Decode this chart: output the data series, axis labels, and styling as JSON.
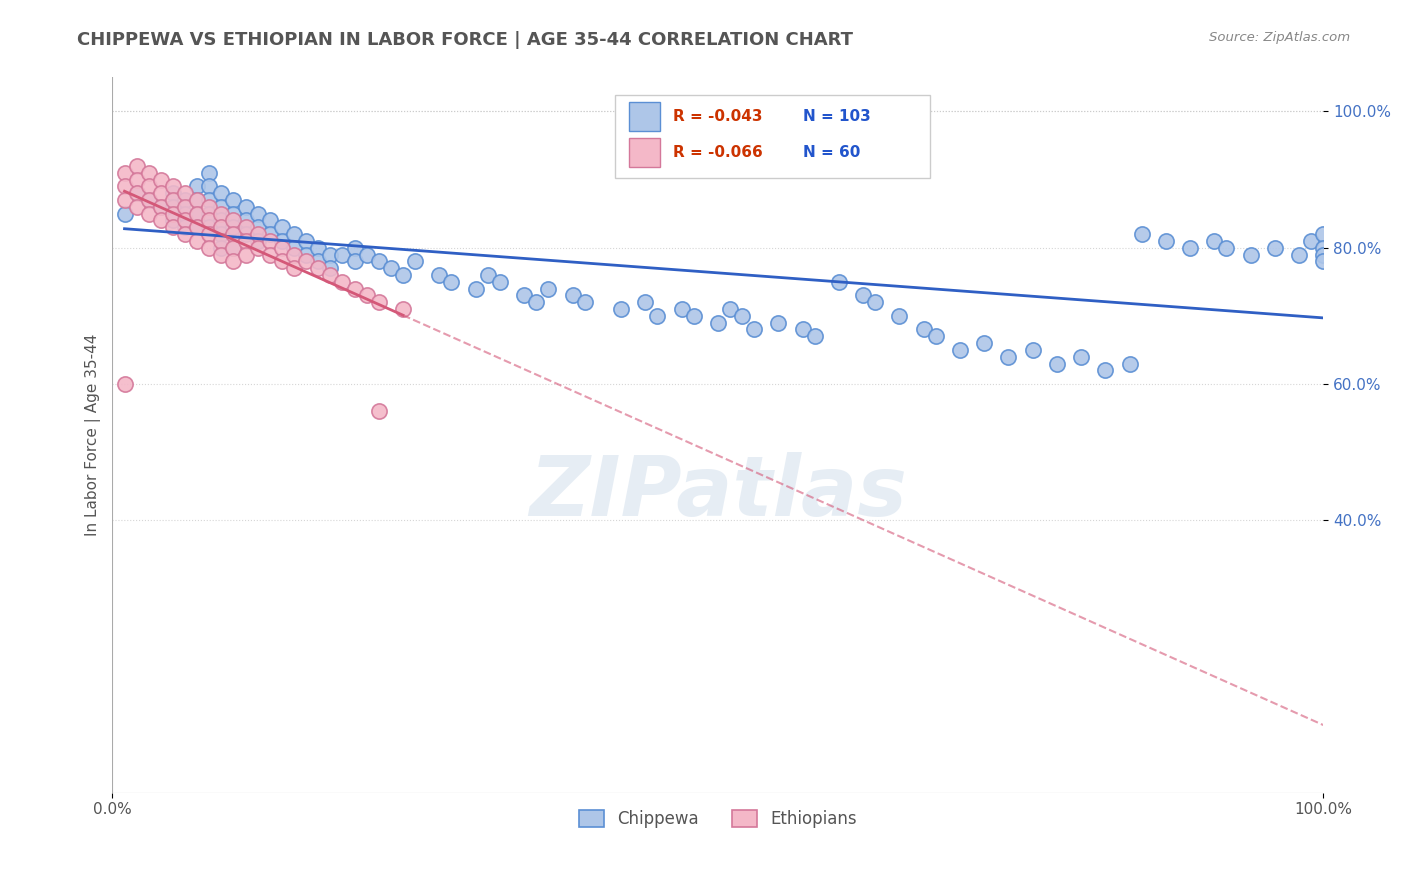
{
  "title": "CHIPPEWA VS ETHIOPIAN IN LABOR FORCE | AGE 35-44 CORRELATION CHART",
  "ylabel": "In Labor Force | Age 35-44",
  "source": "Source: ZipAtlas.com",
  "watermark": "ZIPatlas",
  "legend_chippewa": "Chippewa",
  "legend_ethiopians": "Ethiopians",
  "R_chippewa": -0.043,
  "N_chippewa": 103,
  "R_ethiopians": -0.066,
  "N_ethiopians": 60,
  "chippewa_color": "#aec6e8",
  "ethiopian_color": "#f4b8c8",
  "chippewa_edge_color": "#5b8fd4",
  "ethiopian_edge_color": "#d4789a",
  "chippewa_line_color": "#2f5fc4",
  "ethiopian_line_color": "#d45878",
  "background_color": "#ffffff",
  "xlim": [
    0.0,
    1.0
  ],
  "ylim": [
    0.0,
    1.05
  ],
  "ytick_labels": [
    "40.0%",
    "60.0%",
    "80.0%",
    "100.0%"
  ],
  "ytick_values": [
    0.4,
    0.6,
    0.8,
    1.0
  ],
  "chippewa_x": [
    0.01,
    0.02,
    0.03,
    0.04,
    0.05,
    0.05,
    0.05,
    0.06,
    0.06,
    0.06,
    0.07,
    0.07,
    0.07,
    0.07,
    0.08,
    0.08,
    0.08,
    0.08,
    0.08,
    0.09,
    0.09,
    0.09,
    0.09,
    0.09,
    0.1,
    0.1,
    0.1,
    0.1,
    0.11,
    0.11,
    0.11,
    0.12,
    0.12,
    0.12,
    0.13,
    0.13,
    0.14,
    0.14,
    0.15,
    0.15,
    0.16,
    0.16,
    0.17,
    0.17,
    0.18,
    0.18,
    0.19,
    0.2,
    0.2,
    0.21,
    0.22,
    0.23,
    0.24,
    0.25,
    0.27,
    0.28,
    0.3,
    0.31,
    0.32,
    0.34,
    0.35,
    0.36,
    0.38,
    0.39,
    0.42,
    0.44,
    0.45,
    0.47,
    0.48,
    0.5,
    0.51,
    0.52,
    0.53,
    0.55,
    0.57,
    0.58,
    0.6,
    0.62,
    0.63,
    0.65,
    0.67,
    0.68,
    0.7,
    0.72,
    0.74,
    0.76,
    0.78,
    0.8,
    0.82,
    0.84,
    0.85,
    0.87,
    0.89,
    0.91,
    0.92,
    0.94,
    0.96,
    0.98,
    0.99,
    1.0,
    1.0,
    1.0,
    1.0
  ],
  "chippewa_y": [
    0.85,
    0.88,
    0.87,
    0.86,
    0.88,
    0.86,
    0.84,
    0.87,
    0.85,
    0.83,
    0.89,
    0.87,
    0.85,
    0.83,
    0.91,
    0.89,
    0.87,
    0.85,
    0.83,
    0.88,
    0.86,
    0.84,
    0.82,
    0.8,
    0.87,
    0.85,
    0.83,
    0.8,
    0.86,
    0.84,
    0.82,
    0.85,
    0.83,
    0.81,
    0.84,
    0.82,
    0.83,
    0.81,
    0.82,
    0.8,
    0.81,
    0.79,
    0.8,
    0.78,
    0.79,
    0.77,
    0.79,
    0.8,
    0.78,
    0.79,
    0.78,
    0.77,
    0.76,
    0.78,
    0.76,
    0.75,
    0.74,
    0.76,
    0.75,
    0.73,
    0.72,
    0.74,
    0.73,
    0.72,
    0.71,
    0.72,
    0.7,
    0.71,
    0.7,
    0.69,
    0.71,
    0.7,
    0.68,
    0.69,
    0.68,
    0.67,
    0.75,
    0.73,
    0.72,
    0.7,
    0.68,
    0.67,
    0.65,
    0.66,
    0.64,
    0.65,
    0.63,
    0.64,
    0.62,
    0.63,
    0.82,
    0.81,
    0.8,
    0.81,
    0.8,
    0.79,
    0.8,
    0.79,
    0.81,
    0.82,
    0.8,
    0.79,
    0.78
  ],
  "ethiopian_x": [
    0.01,
    0.01,
    0.01,
    0.02,
    0.02,
    0.02,
    0.02,
    0.03,
    0.03,
    0.03,
    0.03,
    0.04,
    0.04,
    0.04,
    0.04,
    0.05,
    0.05,
    0.05,
    0.05,
    0.06,
    0.06,
    0.06,
    0.06,
    0.07,
    0.07,
    0.07,
    0.07,
    0.08,
    0.08,
    0.08,
    0.08,
    0.09,
    0.09,
    0.09,
    0.09,
    0.1,
    0.1,
    0.1,
    0.1,
    0.11,
    0.11,
    0.11,
    0.12,
    0.12,
    0.13,
    0.13,
    0.14,
    0.14,
    0.15,
    0.15,
    0.16,
    0.17,
    0.18,
    0.19,
    0.2,
    0.21,
    0.22,
    0.24,
    0.01,
    0.22
  ],
  "ethiopian_y": [
    0.91,
    0.89,
    0.87,
    0.92,
    0.9,
    0.88,
    0.86,
    0.91,
    0.89,
    0.87,
    0.85,
    0.9,
    0.88,
    0.86,
    0.84,
    0.89,
    0.87,
    0.85,
    0.83,
    0.88,
    0.86,
    0.84,
    0.82,
    0.87,
    0.85,
    0.83,
    0.81,
    0.86,
    0.84,
    0.82,
    0.8,
    0.85,
    0.83,
    0.81,
    0.79,
    0.84,
    0.82,
    0.8,
    0.78,
    0.83,
    0.81,
    0.79,
    0.82,
    0.8,
    0.81,
    0.79,
    0.8,
    0.78,
    0.79,
    0.77,
    0.78,
    0.77,
    0.76,
    0.75,
    0.74,
    0.73,
    0.72,
    0.71,
    0.6,
    0.56
  ]
}
